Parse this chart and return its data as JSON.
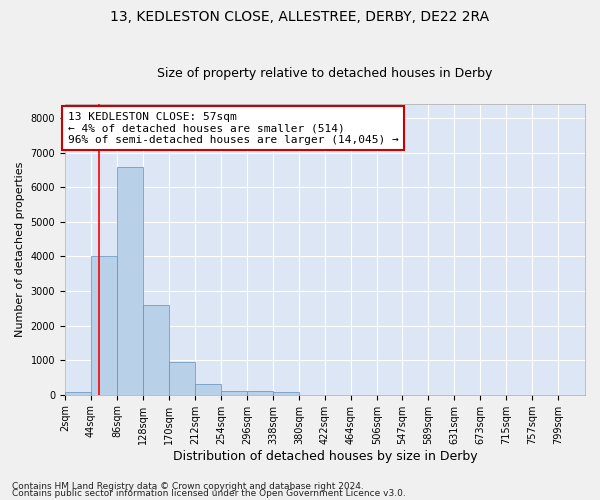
{
  "title1": "13, KEDLESTON CLOSE, ALLESTREE, DERBY, DE22 2RA",
  "title2": "Size of property relative to detached houses in Derby",
  "xlabel": "Distribution of detached houses by size in Derby",
  "ylabel": "Number of detached properties",
  "footer1": "Contains HM Land Registry data © Crown copyright and database right 2024.",
  "footer2": "Contains public sector information licensed under the Open Government Licence v3.0.",
  "annotation_line1": "13 KEDLESTON CLOSE: 57sqm",
  "annotation_line2": "← 4% of detached houses are smaller (514)",
  "annotation_line3": "96% of semi-detached houses are larger (14,045) →",
  "bin_starts": [
    2,
    44,
    86,
    128,
    170,
    212,
    254,
    296,
    338,
    380,
    422,
    464,
    506,
    547,
    589,
    631,
    673,
    715,
    757,
    799
  ],
  "bin_width": 42,
  "bar_values": [
    80,
    4000,
    6600,
    2600,
    950,
    300,
    120,
    100,
    80,
    5,
    2,
    1,
    0,
    0,
    0,
    0,
    0,
    0,
    0,
    0
  ],
  "bar_color": "#b8d0e8",
  "bar_edge_color": "#6090b8",
  "red_line_x": 57,
  "ylim": [
    0,
    8400
  ],
  "yticks": [
    0,
    1000,
    2000,
    3000,
    4000,
    5000,
    6000,
    7000,
    8000
  ],
  "background_color": "#dce6f5",
  "grid_color": "#ffffff",
  "annotation_box_color": "#ffffff",
  "annotation_box_edge_color": "#cc0000",
  "title1_fontsize": 10,
  "title2_fontsize": 9,
  "xlabel_fontsize": 9,
  "ylabel_fontsize": 8,
  "tick_fontsize": 7,
  "footer_fontsize": 6.5,
  "annotation_fontsize": 8
}
